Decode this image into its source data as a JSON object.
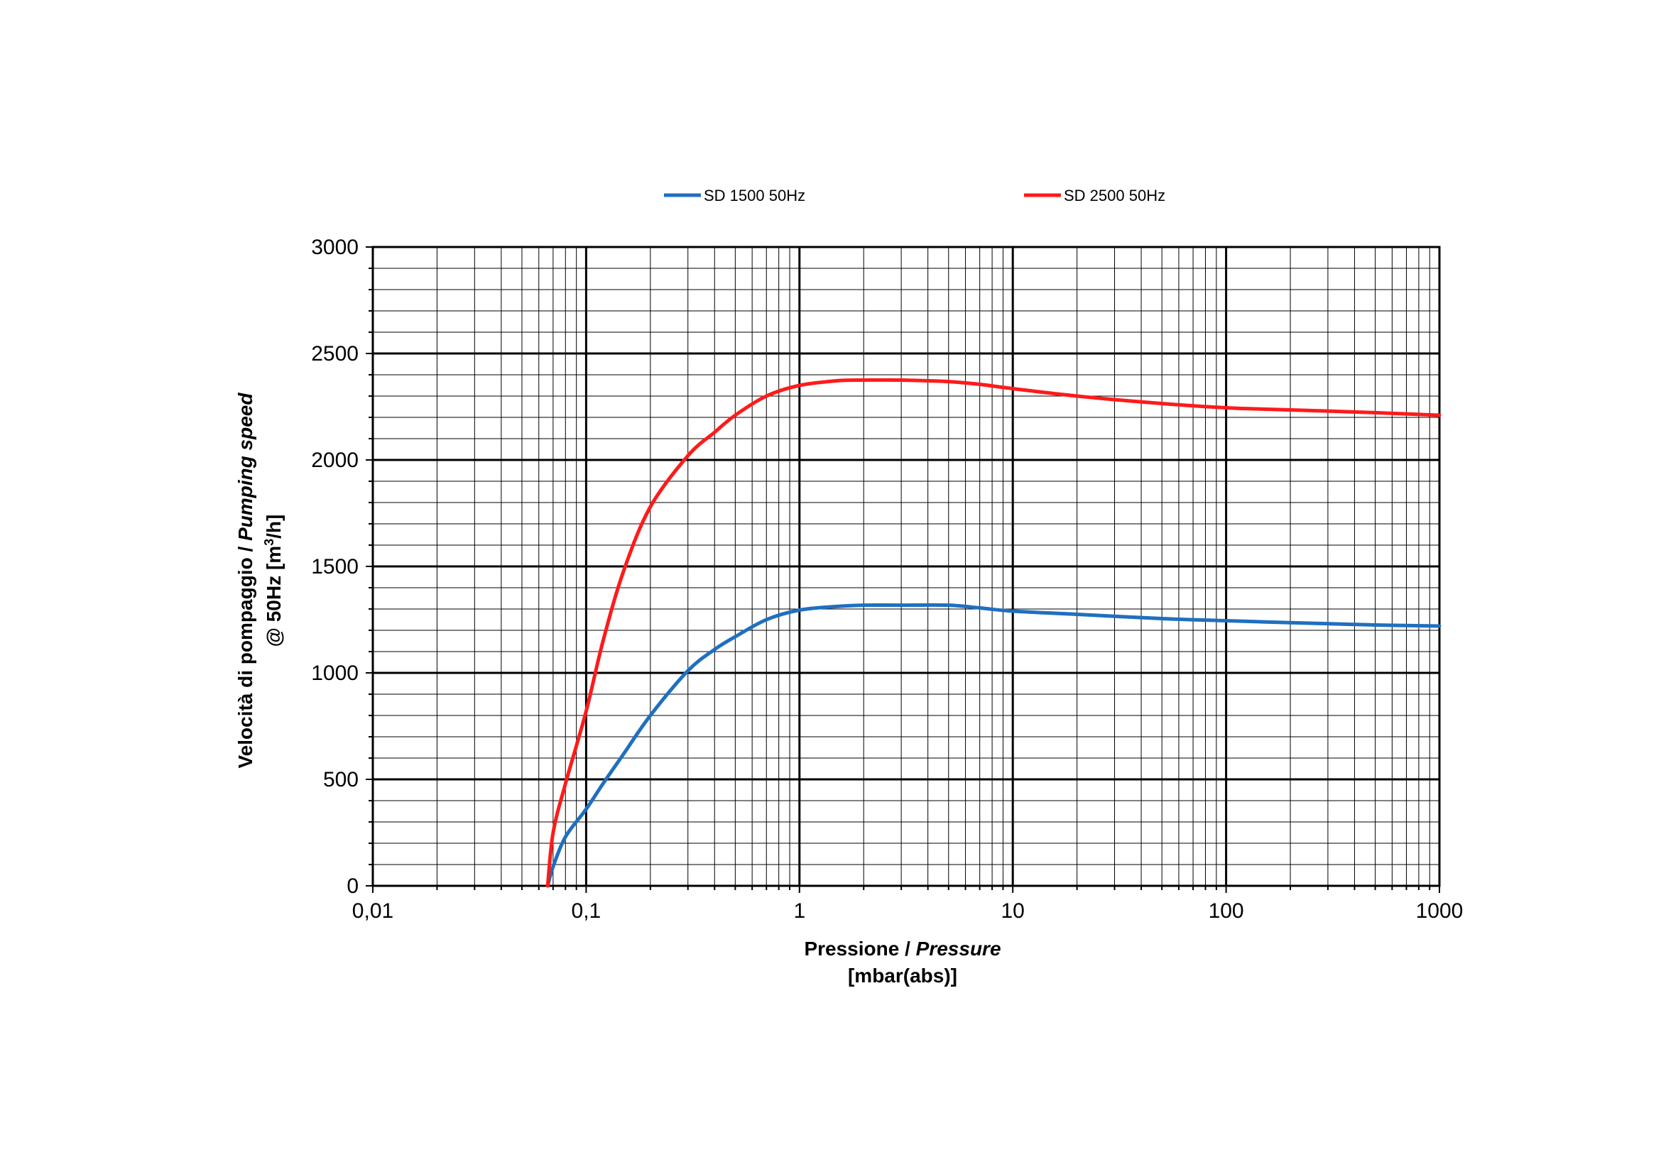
{
  "chart_data": {
    "type": "line",
    "x_scale": "log",
    "xlim": [
      0.01,
      1000
    ],
    "ylim": [
      0,
      3000
    ],
    "grid": true,
    "legend_position": "top",
    "x_ticks": [
      "0,01",
      "0,1",
      "1",
      "10",
      "100",
      "1000"
    ],
    "y_ticks": [
      "0",
      "500",
      "1000",
      "1500",
      "2000",
      "2500",
      "3000"
    ],
    "xlabel": {
      "line1_plain": "Pressione / ",
      "line1_italic": "Pressure",
      "line2": "[mbar(abs)]"
    },
    "ylabel": {
      "line1_plain": "Velocità di pompaggio / ",
      "line1_italic": "Pumping speed",
      "line2_prefix": "@ 50Hz [m",
      "line2_sup": "3",
      "line2_suffix": "/h]"
    },
    "series": [
      {
        "name": "SD 1500 50Hz",
        "color": "#1f6fbf",
        "points": [
          [
            0.066,
            0
          ],
          [
            0.07,
            90
          ],
          [
            0.08,
            230
          ],
          [
            0.1,
            360
          ],
          [
            0.12,
            480
          ],
          [
            0.15,
            620
          ],
          [
            0.2,
            800
          ],
          [
            0.3,
            1010
          ],
          [
            0.4,
            1110
          ],
          [
            0.5,
            1170
          ],
          [
            0.7,
            1250
          ],
          [
            1,
            1295
          ],
          [
            1.5,
            1312
          ],
          [
            2,
            1318
          ],
          [
            3,
            1318
          ],
          [
            5,
            1318
          ],
          [
            7,
            1305
          ],
          [
            10,
            1290
          ],
          [
            20,
            1275
          ],
          [
            50,
            1255
          ],
          [
            100,
            1245
          ],
          [
            200,
            1236
          ],
          [
            500,
            1225
          ],
          [
            1000,
            1220
          ]
        ]
      },
      {
        "name": "SD 2500 50Hz",
        "color": "#ff1a1a",
        "points": [
          [
            0.066,
            0
          ],
          [
            0.07,
            250
          ],
          [
            0.08,
            480
          ],
          [
            0.1,
            820
          ],
          [
            0.12,
            1150
          ],
          [
            0.15,
            1480
          ],
          [
            0.2,
            1780
          ],
          [
            0.3,
            2020
          ],
          [
            0.4,
            2130
          ],
          [
            0.5,
            2210
          ],
          [
            0.7,
            2300
          ],
          [
            1,
            2350
          ],
          [
            1.5,
            2372
          ],
          [
            2,
            2375
          ],
          [
            3,
            2375
          ],
          [
            5,
            2368
          ],
          [
            7,
            2355
          ],
          [
            10,
            2335
          ],
          [
            20,
            2300
          ],
          [
            50,
            2265
          ],
          [
            100,
            2245
          ],
          [
            200,
            2235
          ],
          [
            500,
            2222
          ],
          [
            1000,
            2210
          ]
        ]
      }
    ]
  }
}
